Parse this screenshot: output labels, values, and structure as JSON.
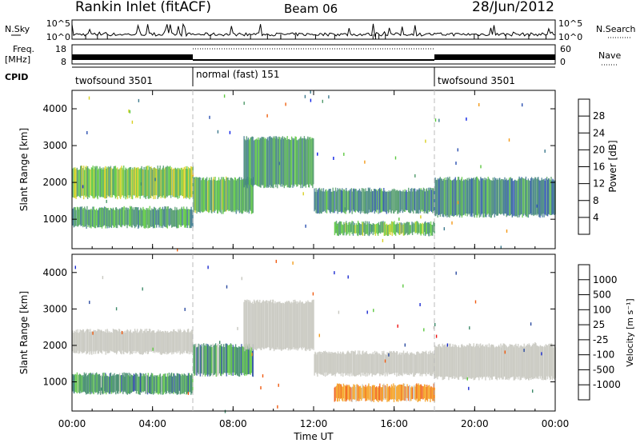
{
  "header": {
    "title": "Rankin Inlet (fitACF)",
    "beam": "Beam 06",
    "date": "28/Jun/2012"
  },
  "strips": {
    "nsky_label": "N.Sky",
    "nsearch_label": "N.Search",
    "nsky_ticks": [
      "10^5",
      "10^0"
    ],
    "nsearch_ticks": [
      "10^5",
      "10^0"
    ],
    "freq_label_1": "Freq.",
    "freq_label_2": "[MHz]",
    "freq_ticks": [
      "18",
      "8"
    ],
    "nave_label": "Nave",
    "nave_ticks": [
      "60",
      "0"
    ],
    "cpid_label": "CPID",
    "cpid_segments": [
      {
        "label": "twofsound 3501",
        "start_hour": 0,
        "end_hour": 6
      },
      {
        "label": "normal (fast) 151",
        "start_hour": 6,
        "end_hour": 18
      },
      {
        "label": "twofsound 3501",
        "start_hour": 18,
        "end_hour": 24
      }
    ]
  },
  "colors": {
    "power": [
      "#0a1fe6",
      "#2a4fb0",
      "#3e7a8e",
      "#4f9a6a",
      "#5cc840",
      "#d8d020",
      "#f49a18",
      "#f06010",
      "#e01010"
    ],
    "velocity": [
      "#f01010",
      "#f05a10",
      "#f4a020",
      "#c8c8c0",
      "#5cc840",
      "#3e8a6a",
      "#2a4aa0",
      "#1a2ad0"
    ],
    "dashed_line": "#bbbbbb"
  },
  "chart_data": [
    {
      "type": "heatmap",
      "name": "Power",
      "ylabel": "Slant Range [km]",
      "ylim": [
        200,
        4500
      ],
      "yticks": [
        1000,
        2000,
        3000,
        4000
      ],
      "xlim": [
        0,
        24
      ],
      "xticks_hours": [
        0,
        4,
        8,
        12,
        16,
        20,
        24
      ],
      "colorbar_label": "Power [dB]",
      "colorbar_ticks": [
        4,
        8,
        12,
        16,
        20,
        24,
        28
      ],
      "colorbar_range": [
        0,
        32
      ],
      "echo_bands": [
        {
          "t0": 0.0,
          "t1": 6.0,
          "r0": 1600,
          "r1": 2400,
          "level": 16
        },
        {
          "t0": 0.0,
          "t1": 6.0,
          "r0": 800,
          "r1": 1300,
          "level": 12
        },
        {
          "t0": 6.0,
          "t1": 9.0,
          "r0": 1200,
          "r1": 2100,
          "level": 14
        },
        {
          "t0": 8.5,
          "t1": 12.0,
          "r0": 1900,
          "r1": 3200,
          "level": 12
        },
        {
          "t0": 12.0,
          "t1": 18.0,
          "r0": 1200,
          "r1": 1800,
          "level": 10
        },
        {
          "t0": 18.0,
          "t1": 24.0,
          "r0": 1100,
          "r1": 2100,
          "level": 10
        },
        {
          "t0": 13.0,
          "t1": 18.0,
          "r0": 600,
          "r1": 900,
          "level": 14
        }
      ]
    },
    {
      "type": "heatmap",
      "name": "Velocity",
      "ylabel": "Slant Range [km]",
      "ylim": [
        200,
        4500
      ],
      "yticks": [
        1000,
        2000,
        3000,
        4000
      ],
      "xlim": [
        0,
        24
      ],
      "xticks_hours": [
        0,
        4,
        8,
        12,
        16,
        20,
        24
      ],
      "xtick_labels": [
        "00:00",
        "04:00",
        "08:00",
        "12:00",
        "16:00",
        "20:00",
        "00:00"
      ],
      "xlabel": "Time UT",
      "colorbar_label": "Velocity [m s⁻¹]",
      "colorbar_ticks": [
        "1000",
        "500",
        "100",
        "25",
        "-25",
        "-100",
        "-500",
        "-1000"
      ],
      "echo_bands": [
        {
          "t0": 0.0,
          "t1": 6.0,
          "r0": 1800,
          "r1": 2400,
          "class": "ground"
        },
        {
          "t0": 0.0,
          "t1": 6.0,
          "r0": 700,
          "r1": 1200,
          "class": "positive"
        },
        {
          "t0": 6.0,
          "t1": 9.0,
          "r0": 1200,
          "r1": 2000,
          "class": "positive"
        },
        {
          "t0": 8.5,
          "t1": 12.0,
          "r0": 1900,
          "r1": 3200,
          "class": "ground"
        },
        {
          "t0": 12.0,
          "t1": 18.0,
          "r0": 1200,
          "r1": 1800,
          "class": "ground"
        },
        {
          "t0": 13.0,
          "t1": 18.0,
          "r0": 500,
          "r1": 900,
          "class": "negative"
        },
        {
          "t0": 18.0,
          "t1": 24.0,
          "r0": 1100,
          "r1": 2000,
          "class": "ground"
        }
      ]
    }
  ]
}
